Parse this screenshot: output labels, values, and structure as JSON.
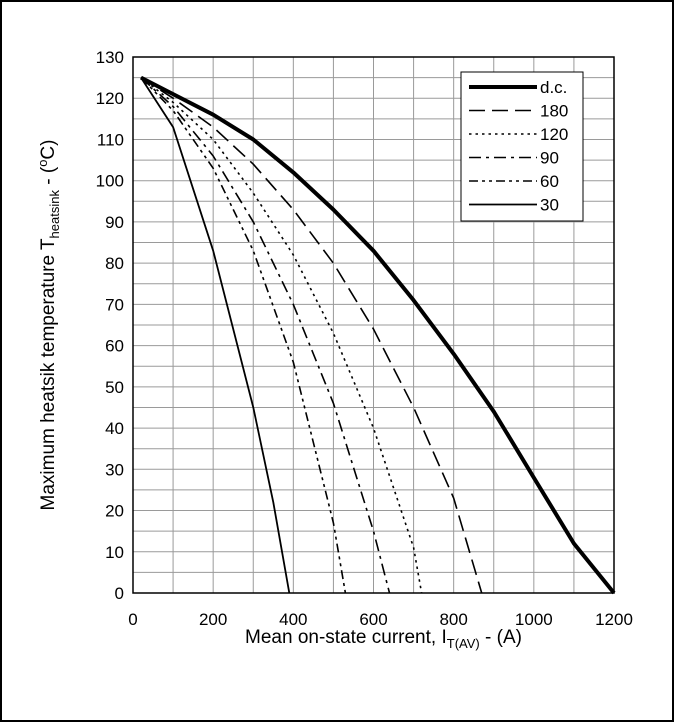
{
  "chart_data": {
    "type": "line",
    "xlabel": {
      "main": "Mean on-state current, I",
      "sub": "T(AV)",
      "tail": " - (A)"
    },
    "ylabel": {
      "main": "Maximum heatsik temperature T",
      "sub": "heatsink",
      "mid": " - (",
      "sup": "o",
      "tail": "C)"
    },
    "xlim": [
      0,
      1200
    ],
    "ylim": [
      0,
      130
    ],
    "x_ticks": [
      0,
      200,
      400,
      600,
      800,
      1000,
      1200
    ],
    "y_ticks": [
      0,
      10,
      20,
      30,
      40,
      50,
      60,
      70,
      80,
      90,
      100,
      110,
      120,
      130
    ],
    "x_minor_step": 100,
    "y_minor_step": 5,
    "grid": true,
    "legend_position": "top-right",
    "series": [
      {
        "name": "d.c.",
        "dash": "solid-thick",
        "x": [
          20,
          100,
          200,
          300,
          400,
          500,
          600,
          700,
          800,
          900,
          1000,
          1100,
          1200
        ],
        "y": [
          125,
          121,
          116,
          110,
          102,
          93,
          83,
          71,
          58,
          44,
          28,
          12,
          0
        ]
      },
      {
        "name": "180",
        "dash": "long-dash",
        "x": [
          20,
          100,
          200,
          300,
          400,
          500,
          600,
          700,
          800,
          870
        ],
        "y": [
          125,
          120,
          113,
          104,
          93,
          80,
          64,
          45,
          23,
          0
        ]
      },
      {
        "name": "120",
        "dash": "dot",
        "x": [
          20,
          100,
          200,
          300,
          400,
          500,
          600,
          700,
          720
        ],
        "y": [
          125,
          119,
          110,
          97,
          82,
          63,
          40,
          11,
          0
        ]
      },
      {
        "name": "90",
        "dash": "dash-dot",
        "x": [
          20,
          100,
          200,
          300,
          400,
          500,
          600,
          640
        ],
        "y": [
          125,
          118,
          106,
          90,
          70,
          46,
          15,
          0
        ]
      },
      {
        "name": "60",
        "dash": "dash-dot-dot",
        "x": [
          20,
          100,
          200,
          300,
          400,
          500,
          530
        ],
        "y": [
          125,
          117,
          103,
          83,
          56,
          17,
          0
        ]
      },
      {
        "name": "30",
        "dash": "solid-thin",
        "x": [
          20,
          100,
          200,
          300,
          350,
          390
        ],
        "y": [
          125,
          113,
          83,
          45,
          22,
          0
        ]
      }
    ]
  }
}
